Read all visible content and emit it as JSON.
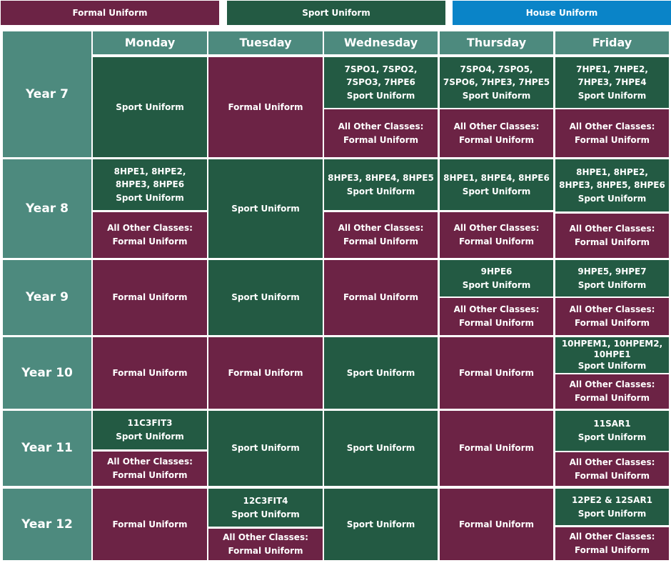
{
  "legend": {
    "formal": "Formal Uniform",
    "sport": "Sport Uniform",
    "house": "House Uniform"
  },
  "colors": {
    "formal": "#6c2345",
    "sport": "#235a43",
    "header": "#4d8a7e",
    "house": "#0a84c8"
  },
  "days": [
    "Monday",
    "Tuesday",
    "Wednesday",
    "Thursday",
    "Friday"
  ],
  "years": [
    "Year 7",
    "Year 8",
    "Year 9",
    "Year 10",
    "Year 11",
    "Year 12"
  ],
  "labels": {
    "sport": "Sport Uniform",
    "formal": "Formal Uniform",
    "other_1": "All Other Classes:",
    "other_2": "Formal  Uniform"
  },
  "classes": {
    "y7_wed": "7SPO1, 7SPO2, 7SPO3, 7HPE6",
    "y7_thu": "7SPO4, 7SPO5, 7SPO6, 7HPE3, 7HPE5",
    "y7_fri": "7HPE1, 7HPE2, 7HPE3, 7HPE4",
    "y8_mon": "8HPE1, 8HPE2, 8HPE3, 8HPE6",
    "y8_wed": "8HPE3, 8HPE4, 8HPE5",
    "y8_thu": "8HPE1, 8HPE4, 8HPE6",
    "y8_fri": "8HPE1, 8HPE2, 8HPE3, 8HPE5, 8HPE6",
    "y9_thu": "9HPE6",
    "y9_fri": "9HPE5, 9HPE7",
    "y10_fri": "10HPEM1, 10HPEM2, 10HPE1",
    "y11_mon": "11C3FIT3",
    "y11_fri": "11SAR1",
    "y12_tue": "12C3FIT4",
    "y12_fri": "12PE2 & 12SAR1"
  }
}
